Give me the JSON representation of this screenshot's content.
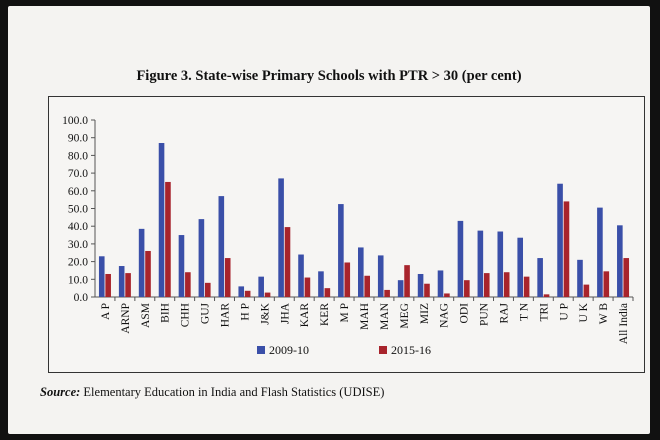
{
  "figure": {
    "title": "Figure 3. State-wise Primary Schools with PTR > 30 (per cent)",
    "source_label": "Source:",
    "source_text": " Elementary Education in India and Flash Statistics (UDISE)"
  },
  "chart_data": {
    "type": "bar",
    "title": "Figure 3. State-wise Primary Schools with PTR > 30 (per cent)",
    "xlabel": "",
    "ylabel": "",
    "ylim": [
      0,
      100
    ],
    "yticks": [
      "0.0",
      "10.0",
      "20.0",
      "30.0",
      "40.0",
      "50.0",
      "60.0",
      "70.0",
      "80.0",
      "90.0",
      "100.0"
    ],
    "grid": false,
    "legend_position": "bottom",
    "categories": [
      "A P",
      "ARNP",
      "ASM",
      "BIH",
      "CHH",
      "GUJ",
      "HAR",
      "H P",
      "J&K",
      "JHA",
      "KAR",
      "KER",
      "M P",
      "MAH",
      "MAN",
      "MEG",
      "MIZ",
      "NAG",
      "ODI",
      "PUN",
      "RAJ",
      "T N",
      "TRI",
      "U P",
      "U K",
      "W B",
      "All India"
    ],
    "series": [
      {
        "name": "2009-10",
        "color": "#3a4fa8",
        "values": [
          23,
          17.5,
          38.5,
          87,
          35,
          44,
          57,
          6,
          11.5,
          67,
          24,
          14.5,
          52.5,
          28,
          23.5,
          9.5,
          13,
          15,
          43,
          37.5,
          37,
          33.5,
          22,
          64,
          21,
          50.5,
          40.5
        ]
      },
      {
        "name": "2015-16",
        "color": "#a8242c",
        "values": [
          13,
          13.5,
          26,
          65,
          14,
          8,
          22,
          3.5,
          2.5,
          39.5,
          11,
          5,
          19.5,
          12,
          4,
          18,
          7.5,
          2,
          9.5,
          13.5,
          14,
          11.5,
          1.5,
          54,
          7,
          14.5,
          22
        ]
      }
    ]
  }
}
